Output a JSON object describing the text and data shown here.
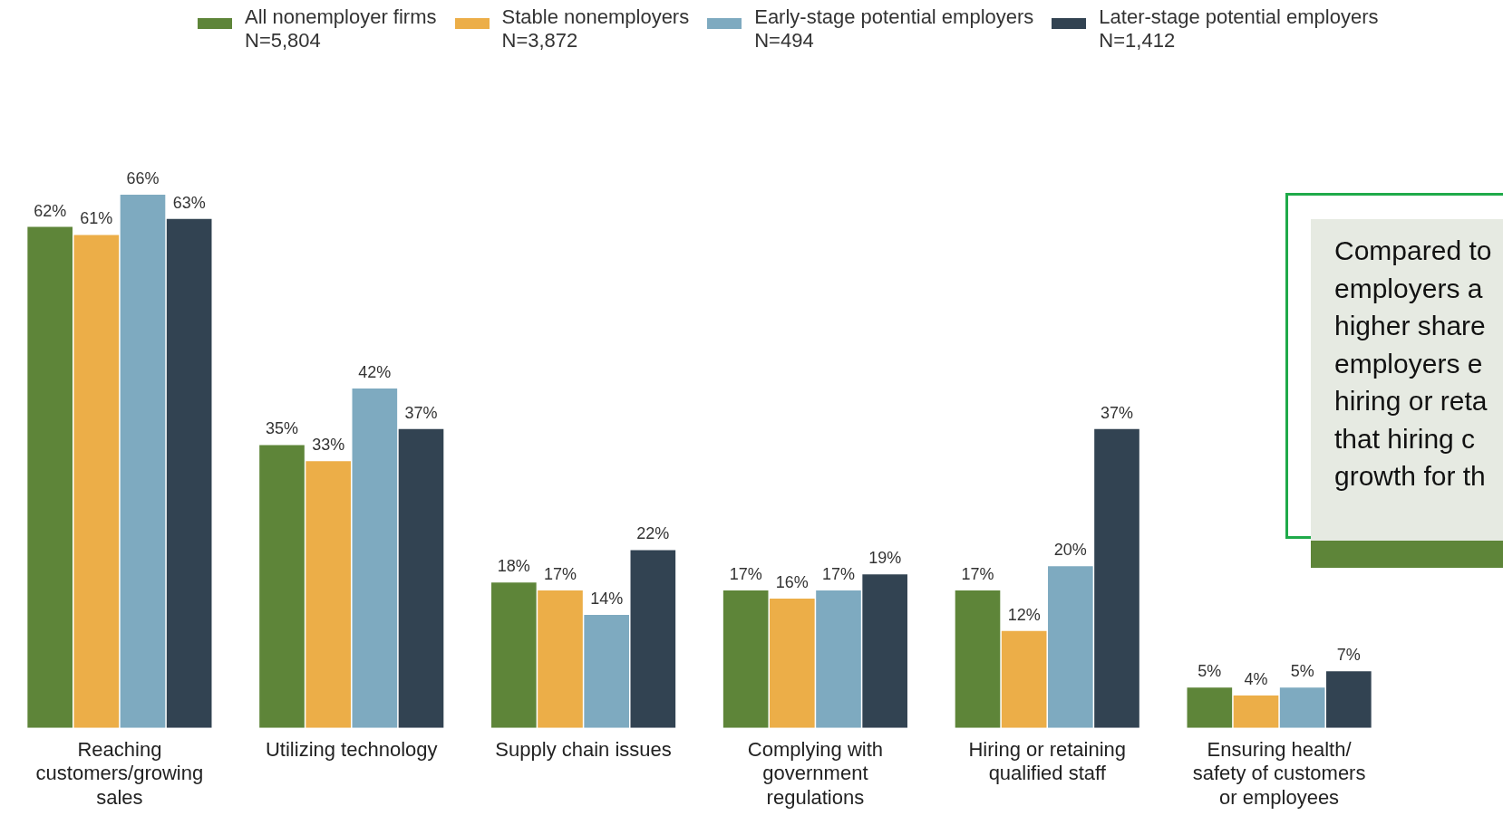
{
  "chart_data": {
    "type": "bar",
    "categories": [
      "Reaching customers/growing sales",
      "Utilizing technology",
      "Supply chain issues",
      "Complying with government regulations",
      "Hiring or retaining qualified staff",
      "Ensuring health/ safety of customers or employees"
    ],
    "series": [
      {
        "name": "All nonemployer firms\nN=5,804",
        "color": "#5e8539",
        "values": [
          62,
          35,
          18,
          17,
          17,
          5
        ],
        "value_labels": [
          "62%",
          "35%",
          "18%",
          "17%",
          "17%",
          "5%"
        ]
      },
      {
        "name": "Stable nonemployers\nN=3,872",
        "color": "#ecae48",
        "values": [
          61,
          33,
          17,
          16,
          12,
          4
        ],
        "value_labels": [
          "61%",
          "33%",
          "17%",
          "16%",
          "12%",
          "4%"
        ]
      },
      {
        "name": "Early-stage potential employers\nN=494",
        "color": "#7eaac0",
        "values": [
          66,
          42,
          14,
          17,
          20,
          5
        ],
        "value_labels": [
          "66%",
          "42%",
          "14%",
          "17%",
          "20%",
          "5%"
        ]
      },
      {
        "name": "Later-stage potential employers\nN=1,412",
        "color": "#324352",
        "values": [
          63,
          37,
          22,
          19,
          37,
          7
        ],
        "value_labels": [
          "63%",
          "37%",
          "22%",
          "19%",
          "37%",
          "7%"
        ]
      }
    ],
    "legend": "top",
    "grid": false,
    "annotations": [
      "Compared to\nemployers a\nhigher share\nemployers e\nhiring or reta\nthat hiring c\ngrowth for th"
    ]
  }
}
